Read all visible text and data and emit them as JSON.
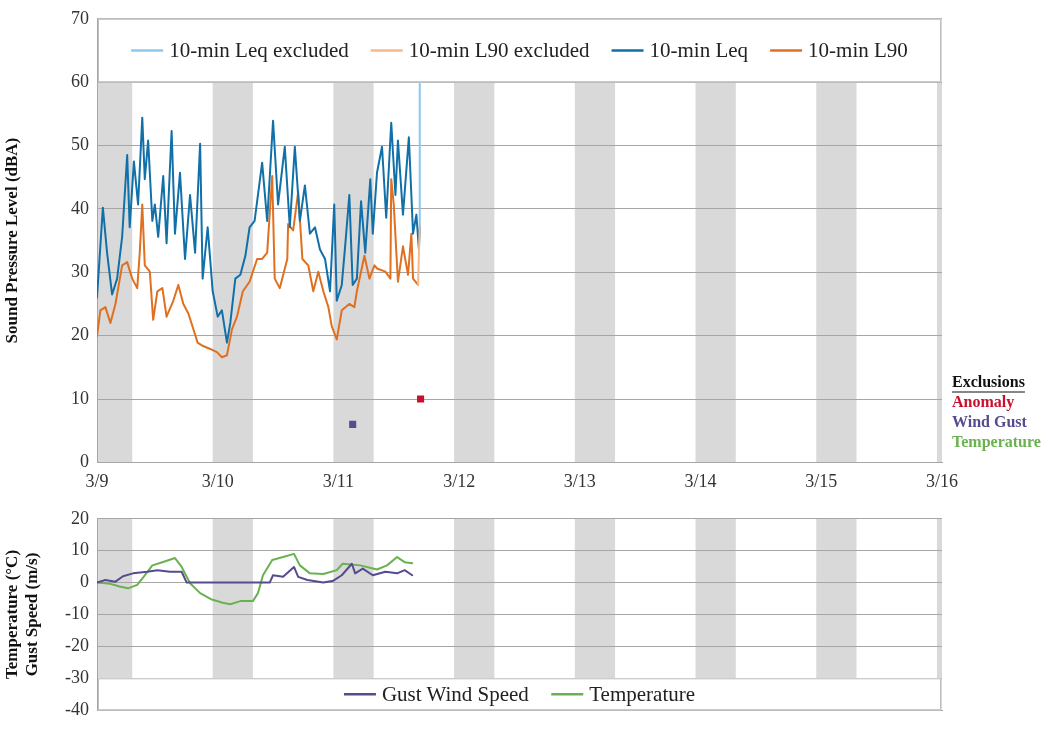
{
  "chart_data": [
    {
      "type": "line",
      "ylabel": "Sound Pressure Level (dBA)",
      "legend": "top",
      "legend_title": "Exclusions",
      "grid": "y",
      "marker": "none",
      "xlim": [
        "--03-09T00:00",
        "--03-16T00:00"
      ],
      "xticks": [
        {
          "value": "--03-09T00:00",
          "label": "3/9"
        },
        {
          "value": "--03-10T00:00",
          "label": "3/10"
        },
        {
          "value": "--03-11T00:00",
          "label": "3/11"
        },
        {
          "value": "--03-12T00:00",
          "label": "3/12"
        },
        {
          "value": "--03-13T00:00",
          "label": "3/13"
        },
        {
          "value": "--03-14T00:00",
          "label": "3/14"
        },
        {
          "value": "--03-15T00:00",
          "label": "3/15"
        },
        {
          "value": "--03-16T00:00",
          "label": "3/16"
        }
      ],
      "ylim": [
        0,
        70
      ],
      "yticks": [
        0,
        10,
        20,
        30,
        40,
        50,
        60,
        70
      ],
      "bands": [
        {
          "axis": "x",
          "from": "--03-09T00:00",
          "to": "--03-09T07:00",
          "color": "#d9d9d9"
        },
        {
          "axis": "x",
          "from": "--03-09T23:00",
          "to": "--03-10T07:00",
          "color": "#d9d9d9"
        },
        {
          "axis": "x",
          "from": "--03-10T23:00",
          "to": "--03-11T07:00",
          "color": "#d9d9d9"
        },
        {
          "axis": "x",
          "from": "--03-11T23:00",
          "to": "--03-12T07:00",
          "color": "#d9d9d9"
        },
        {
          "axis": "x",
          "from": "--03-12T23:00",
          "to": "--03-13T07:00",
          "color": "#d9d9d9"
        },
        {
          "axis": "x",
          "from": "--03-13T23:00",
          "to": "--03-14T07:00",
          "color": "#d9d9d9"
        },
        {
          "axis": "x",
          "from": "--03-14T23:00",
          "to": "--03-15T07:00",
          "color": "#d9d9d9"
        },
        {
          "axis": "x",
          "from": "--03-15T23:00",
          "to": "--03-16T00:00",
          "color": "#d9d9d9"
        }
      ],
      "series": [
        {
          "name": "10-min Leq excluded",
          "color": "#8cc8ec",
          "x": [
            "--03-11T16:10",
            "--03-11T16:10"
          ],
          "values": [
            37.1,
            60
          ]
        },
        {
          "name": "10-min L90 excluded",
          "color": "#f8b88b",
          "x": [
            "--03-11T15:50",
            "--03-11T16:10"
          ],
          "values": [
            28.0,
            37.6
          ]
        },
        {
          "name": "10-min Leq",
          "color": "#1170a8",
          "x": [
            "--03-09T00:00",
            "--03-09T01:10",
            "--03-09T02:00",
            "--03-09T03:00",
            "--03-09T04:00",
            "--03-09T05:00",
            "--03-09T06:00",
            "--03-09T06:30",
            "--03-09T07:20",
            "--03-09T08:10",
            "--03-09T09:00",
            "--03-09T09:30",
            "--03-09T10:10",
            "--03-09T11:00",
            "--03-09T11:30",
            "--03-09T12:10",
            "--03-09T13:10",
            "--03-09T13:50",
            "--03-09T14:50",
            "--03-09T15:30",
            "--03-09T16:30",
            "--03-09T17:30",
            "--03-09T18:30",
            "--03-09T19:30",
            "--03-09T20:30",
            "--03-09T21:00",
            "--03-09T22:00",
            "--03-09T23:00",
            "--03-10T00:00",
            "--03-10T00:50",
            "--03-10T01:50",
            "--03-10T02:30",
            "--03-10T03:30",
            "--03-10T04:30",
            "--03-10T05:30",
            "--03-10T06:20",
            "--03-10T07:20",
            "--03-10T08:50",
            "--03-10T09:50",
            "--03-10T11:00",
            "--03-10T12:00",
            "--03-10T13:20",
            "--03-10T14:20",
            "--03-10T15:20",
            "--03-10T16:20",
            "--03-10T17:20",
            "--03-10T18:20",
            "--03-10T19:20",
            "--03-10T20:20",
            "--03-10T21:20",
            "--03-10T22:20",
            "--03-10T23:10",
            "--03-10T23:40",
            "--03-11T00:40",
            "--03-11T01:20",
            "--03-11T02:10",
            "--03-11T02:50",
            "--03-11T03:40",
            "--03-11T04:30",
            "--03-11T05:20",
            "--03-11T06:20",
            "--03-11T06:50",
            "--03-11T07:40",
            "--03-11T08:40",
            "--03-11T09:30",
            "--03-11T10:30",
            "--03-11T11:20",
            "--03-11T11:50",
            "--03-11T12:50",
            "--03-11T14:00",
            "--03-11T14:50",
            "--03-11T15:30",
            "--03-11T16:00",
            "--03-11T16:10"
          ],
          "values": [
            26.0,
            40.2,
            33.1,
            26.5,
            29.0,
            35.6,
            48.5,
            37.1,
            47.5,
            40.7,
            54.4,
            44.7,
            50.8,
            38.1,
            40.7,
            35.6,
            45.2,
            34.6,
            52.3,
            36.1,
            45.7,
            32.1,
            42.2,
            33.1,
            50.3,
            29.0,
            37.1,
            27.0,
            23.0,
            24.0,
            18.9,
            22.0,
            29.0,
            29.6,
            32.6,
            37.1,
            38.1,
            47.3,
            38.1,
            53.9,
            40.7,
            49.8,
            37.1,
            49.8,
            38.1,
            43.7,
            36.1,
            37.1,
            33.6,
            32.1,
            27.0,
            40.7,
            25.5,
            28.0,
            34.1,
            42.2,
            28.0,
            29.0,
            41.2,
            33.1,
            44.7,
            36.1,
            45.7,
            49.8,
            38.6,
            53.6,
            42.2,
            50.8,
            39.1,
            51.3,
            36.1,
            39.1,
            33.6,
            37.1
          ]
        },
        {
          "name": "10-min L90",
          "color": "#e0701f",
          "x": [
            "--03-09T00:00",
            "--03-09T00:40",
            "--03-09T01:40",
            "--03-09T02:40",
            "--03-09T03:40",
            "--03-09T05:00",
            "--03-09T06:00",
            "--03-09T07:00",
            "--03-09T08:00",
            "--03-09T08:30",
            "--03-09T09:00",
            "--03-09T09:30",
            "--03-09T10:30",
            "--03-09T11:10",
            "--03-09T12:00",
            "--03-09T13:00",
            "--03-09T13:50",
            "--03-09T15:10",
            "--03-09T16:10",
            "--03-09T17:10",
            "--03-09T18:10",
            "--03-09T19:10",
            "--03-09T20:00",
            "--03-09T21:00",
            "--03-09T22:30",
            "--03-09T23:50",
            "--03-10T00:50",
            "--03-10T01:50",
            "--03-10T02:50",
            "--03-10T03:50",
            "--03-10T05:00",
            "--03-10T06:20",
            "--03-10T07:50",
            "--03-10T08:50",
            "--03-10T09:50",
            "--03-10T10:50",
            "--03-10T11:20",
            "--03-10T12:20",
            "--03-10T13:50",
            "--03-10T14:00",
            "--03-10T15:00",
            "--03-10T16:00",
            "--03-10T16:50",
            "--03-10T18:00",
            "--03-10T19:00",
            "--03-10T20:00",
            "--03-10T21:00",
            "--03-10T22:00",
            "--03-10T22:40",
            "--03-10T23:40",
            "--03-11T00:40",
            "--03-11T02:10",
            "--03-11T03:10",
            "--03-11T03:40",
            "--03-11T05:10",
            "--03-11T06:10",
            "--03-11T07:10",
            "--03-11T07:40",
            "--03-11T09:20",
            "--03-11T10:20",
            "--03-11T10:30",
            "--03-11T11:00",
            "--03-11T11:50",
            "--03-11T12:50",
            "--03-11T13:50",
            "--03-11T14:30",
            "--03-11T14:50",
            "--03-11T15:50"
          ],
          "values": [
            19.9,
            24.0,
            24.5,
            22.0,
            25.0,
            31.1,
            31.6,
            29.0,
            27.5,
            33.1,
            40.7,
            31.1,
            30.1,
            22.5,
            27.0,
            27.5,
            23.0,
            25.5,
            28.0,
            25.0,
            23.5,
            21.0,
            18.9,
            18.4,
            17.9,
            17.4,
            16.6,
            16.9,
            21.0,
            23.0,
            27.0,
            28.5,
            32.1,
            32.1,
            33.1,
            45.2,
            29.0,
            27.5,
            32.1,
            37.6,
            36.6,
            42.7,
            32.1,
            31.1,
            27.0,
            30.1,
            27.0,
            24.5,
            21.5,
            19.4,
            24.0,
            25.0,
            24.5,
            27.0,
            32.6,
            29.0,
            31.1,
            30.6,
            30.1,
            29.0,
            44.7,
            40.7,
            28.5,
            34.1,
            29.6,
            36.1,
            29.0,
            28.0
          ]
        },
        {
          "name": "Anomaly",
          "type": "scatter",
          "marker": "square",
          "color": "#c8102e",
          "x": [
            "--03-11T16:20"
          ],
          "values": [
            10
          ]
        },
        {
          "name": "Wind Gust",
          "type": "scatter",
          "marker": "square",
          "color": "#564b8f",
          "x": [
            "--03-11T02:50"
          ],
          "values": [
            6.0
          ]
        },
        {
          "name": "Temperature",
          "type": "scatter",
          "marker": "square",
          "color": "#6ab150"
        }
      ]
    },
    {
      "type": "line",
      "ylabel": "Temperature (°C)\nGust Speed (m/s)",
      "legend": "bottom",
      "grid": "y",
      "marker": "none",
      "tick_labels": "y",
      "xlim": [
        "--03-09T00:00",
        "--03-16T00:00"
      ],
      "ylim": [
        -40,
        20
      ],
      "yticks": [
        -40,
        -30,
        -20,
        -10,
        0,
        10,
        20
      ],
      "bands": [
        {
          "axis": "x",
          "from": "--03-09T00:00",
          "to": "--03-09T07:00",
          "color": "#d9d9d9"
        },
        {
          "axis": "x",
          "from": "--03-09T23:00",
          "to": "--03-10T07:00",
          "color": "#d9d9d9"
        },
        {
          "axis": "x",
          "from": "--03-10T23:00",
          "to": "--03-11T07:00",
          "color": "#d9d9d9"
        },
        {
          "axis": "x",
          "from": "--03-11T23:00",
          "to": "--03-12T07:00",
          "color": "#d9d9d9"
        },
        {
          "axis": "x",
          "from": "--03-12T23:00",
          "to": "--03-13T07:00",
          "color": "#d9d9d9"
        },
        {
          "axis": "x",
          "from": "--03-13T23:00",
          "to": "--03-14T07:00",
          "color": "#d9d9d9"
        },
        {
          "axis": "x",
          "from": "--03-14T23:00",
          "to": "--03-15T07:00",
          "color": "#d9d9d9"
        },
        {
          "axis": "x",
          "from": "--03-15T23:00",
          "to": "--03-16T00:00",
          "color": "#d9d9d9"
        }
      ],
      "series": [
        {
          "name": "Gust Wind Speed",
          "color": "#564b8f",
          "x": [
            "--03-09T00:00",
            "--03-09T01:40",
            "--03-09T03:40",
            "--03-09T05:10",
            "--03-09T07:10",
            "--03-09T10:00",
            "--03-09T12:00",
            "--03-09T14:30",
            "--03-09T16:50",
            "--03-09T17:50",
            "--03-10T10:20",
            "--03-10T11:00",
            "--03-10T13:00",
            "--03-10T15:10",
            "--03-10T16:00",
            "--03-10T17:50",
            "--03-10T21:00",
            "--03-10T23:00",
            "--03-11T00:40",
            "--03-11T02:40",
            "--03-11T03:20",
            "--03-11T04:50",
            "--03-11T06:50",
            "--03-11T09:20",
            "--03-11T11:40",
            "--03-11T13:10",
            "--03-11T14:40"
          ],
          "values": [
            0,
            0.8,
            0.3,
            2.0,
            2.9,
            3.4,
            3.9,
            3.4,
            3.4,
            0,
            0,
            2.3,
            1.8,
            4.9,
            1.8,
            0.8,
            0,
            0.6,
            2.3,
            5.9,
            2.9,
            4.4,
            2.3,
            3.4,
            2.9,
            3.9,
            2.3
          ]
        },
        {
          "name": "Temperature",
          "color": "#6ab150",
          "x": [
            "--03-09T00:00",
            "--03-09T02:40",
            "--03-09T04:30",
            "--03-09T06:10",
            "--03-09T08:00",
            "--03-09T09:30",
            "--03-09T11:00",
            "--03-09T13:00",
            "--03-09T15:30",
            "--03-09T16:50",
            "--03-09T18:30",
            "--03-09T20:30",
            "--03-09T22:50",
            "--03-10T01:00",
            "--03-10T02:30",
            "--03-10T04:30",
            "--03-10T07:00",
            "--03-10T08:00",
            "--03-10T09:00",
            "--03-10T10:50",
            "--03-10T13:00",
            "--03-10T15:10",
            "--03-10T16:20",
            "--03-10T18:20",
            "--03-10T21:00",
            "--03-10T23:40",
            "--03-11T00:50",
            "--03-11T04:20",
            "--03-11T07:40",
            "--03-11T09:40",
            "--03-11T11:40",
            "--03-11T13:10",
            "--03-11T14:40"
          ],
          "values": [
            0,
            -0.4,
            -1.2,
            -1.8,
            -0.7,
            2.3,
            5.4,
            6.4,
            7.7,
            4.9,
            -0.2,
            -3.3,
            -5.3,
            -6.3,
            -6.8,
            -5.8,
            -5.8,
            -3.3,
            2.3,
            7.1,
            8.0,
            9.0,
            5.4,
            2.9,
            2.7,
            3.9,
            5.9,
            5.4,
            4.1,
            5.4,
            8.0,
            6.4,
            6.1
          ]
        }
      ]
    }
  ]
}
